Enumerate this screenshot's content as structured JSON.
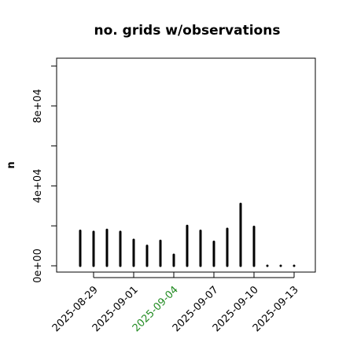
{
  "chart_data": {
    "type": "bar",
    "title": "no. grids w/observations",
    "ylabel": "n",
    "xlabel": "",
    "ylim": [
      0,
      100000
    ],
    "yticks": [
      0,
      20000,
      40000,
      60000,
      80000,
      100000
    ],
    "ytick_labels": [
      {
        "value": 0,
        "label": "0e+00"
      },
      {
        "value": 40000,
        "label": "4e+04"
      },
      {
        "value": 80000,
        "label": "8e+04"
      }
    ],
    "xticks": [
      {
        "date": "2025-08-29",
        "label": "2025-08-29",
        "color": "#000000"
      },
      {
        "date": "2025-09-01",
        "label": "2025-09-01",
        "color": "#000000"
      },
      {
        "date": "2025-09-04",
        "label": "2025-09-04",
        "color": "#228B22"
      },
      {
        "date": "2025-09-07",
        "label": "2025-09-07",
        "color": "#000000"
      },
      {
        "date": "2025-09-10",
        "label": "2025-09-10",
        "color": "#000000"
      },
      {
        "date": "2025-09-13",
        "label": "2025-09-13",
        "color": "#000000"
      }
    ],
    "categories": [
      "2025-08-28",
      "2025-08-29",
      "2025-08-30",
      "2025-08-31",
      "2025-09-01",
      "2025-09-02",
      "2025-09-03",
      "2025-09-04",
      "2025-09-05",
      "2025-09-06",
      "2025-09-07",
      "2025-09-08",
      "2025-09-09",
      "2025-09-10",
      "2025-09-11",
      "2025-09-12",
      "2025-09-13"
    ],
    "values": [
      17500,
      17000,
      18000,
      17000,
      13000,
      10000,
      12500,
      5500,
      20000,
      17500,
      12000,
      18500,
      31000,
      19500,
      0,
      0,
      0
    ],
    "bar_color": "#000000",
    "grid": false
  }
}
